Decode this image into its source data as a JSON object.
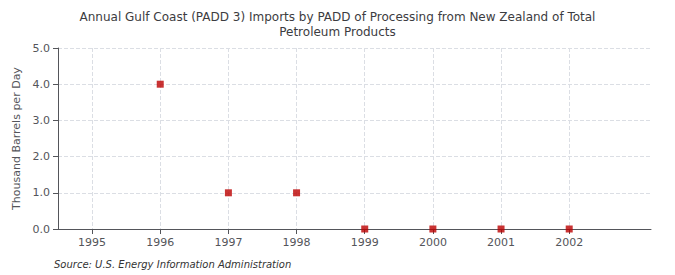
{
  "chart_data": {
    "type": "scatter",
    "title": "Annual Gulf Coast (PADD 3) Imports by PADD of Processing from New Zealand of Total\nPetroleum Products",
    "ylabel": "Thousand Barrels per Day",
    "source": "Source: U.S. Energy Information Administration",
    "x": [
      1996,
      1997,
      1998,
      1999,
      2000,
      2001,
      2002
    ],
    "values": [
      4.0,
      1.0,
      1.0,
      0.0,
      0.0,
      0.0,
      0.0
    ],
    "color": "#bb0000",
    "marker": "square",
    "xlim": [
      1994.5,
      2003.2
    ],
    "ylim": [
      0.0,
      5.0
    ],
    "xticks": [
      1995,
      1996,
      1997,
      1998,
      1999,
      2000,
      2001,
      2002
    ],
    "yticks": [
      {
        "value": 0,
        "label": "0.0"
      },
      {
        "value": 1,
        "label": "1.0"
      },
      {
        "value": 2,
        "label": "2.0"
      },
      {
        "value": 3,
        "label": "3.0"
      },
      {
        "value": 4,
        "label": "4.0"
      },
      {
        "value": 5,
        "label": "5.0"
      }
    ],
    "grid": true
  }
}
